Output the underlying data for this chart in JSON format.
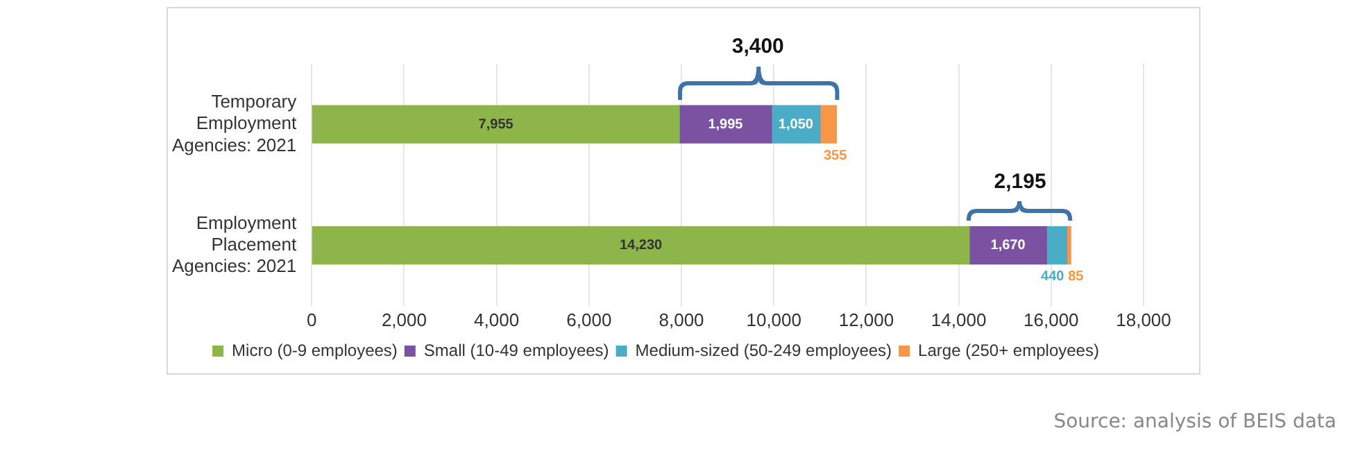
{
  "chart_data": {
    "type": "bar",
    "orientation": "horizontal",
    "stacked": true,
    "categories": [
      "Temporary Employment Agencies: 2021",
      "Employment Placement Agencies: 2021"
    ],
    "series": [
      {
        "name": "Micro (0-9 employees)",
        "color": "#8db54a",
        "values": [
          7955,
          14230
        ],
        "value_labels": [
          "7,955",
          "14,230"
        ]
      },
      {
        "name": "Small (10-49 employees)",
        "color": "#7b52a1",
        "values": [
          1995,
          1670
        ],
        "value_labels": [
          "1,995",
          "1,670"
        ]
      },
      {
        "name": "Medium-sized (50-249 employees)",
        "color": "#4bacc6",
        "values": [
          1050,
          440
        ],
        "value_labels": [
          "1,050",
          "440"
        ]
      },
      {
        "name": "Large (250+ employees)",
        "color": "#f79646",
        "values": [
          355,
          85
        ],
        "value_labels": [
          "355",
          "85"
        ]
      }
    ],
    "xlim": [
      0,
      18000
    ],
    "xticks": [
      0,
      {
        "value": 2000,
        "label": "2,000"
      },
      {
        "value": 4000,
        "label": "4,000"
      },
      {
        "value": 6000,
        "label": "6,000"
      },
      {
        "value": 8000,
        "label": "8,000"
      },
      {
        "value": 10000,
        "label": "10,000"
      },
      {
        "value": 12000,
        "label": "12,000"
      },
      {
        "value": 14000,
        "label": "14,000"
      },
      {
        "value": 16000,
        "label": "16,000"
      },
      {
        "value": 18000,
        "label": "18,000"
      }
    ],
    "grid": "x",
    "legend": "bottom",
    "annotations": [
      "3,400",
      "2,195",
      "Source: analysis of BEIS data"
    ]
  }
}
